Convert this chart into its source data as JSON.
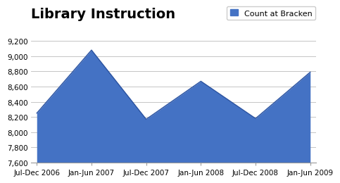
{
  "title": "Library Instruction",
  "legend_label": "Count at Bracken",
  "categories": [
    "Jul-Dec 2006",
    "Jan-Jun 2007",
    "Jul-Dec 2007",
    "Jan-Jun 2008",
    "Jul-Dec 2008",
    "Jan-Jun 2009"
  ],
  "values": [
    8250,
    9080,
    8170,
    8670,
    8180,
    8790
  ],
  "area_color": "#4472C4",
  "area_edge_color": "#2A52A0",
  "ylim": [
    7600,
    9200
  ],
  "yticks": [
    7600,
    7800,
    8000,
    8200,
    8400,
    8600,
    8800,
    9000,
    9200
  ],
  "background_color": "#FFFFFF",
  "grid_color": "#BBBBBB",
  "title_fontsize": 14,
  "legend_fontsize": 8,
  "tick_fontsize": 7.5
}
